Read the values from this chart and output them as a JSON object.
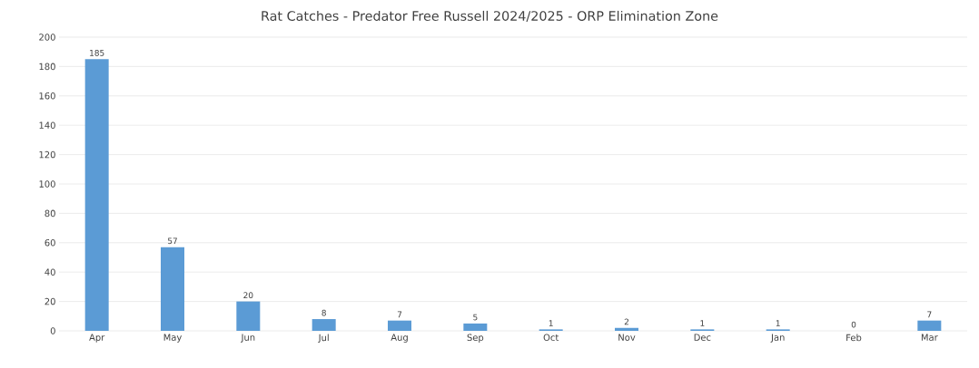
{
  "chart_data": {
    "type": "bar",
    "title": "Rat Catches - Predator Free Russell 2024/2025 - ORP Elimination Zone",
    "categories": [
      "Apr",
      "May",
      "Jun",
      "Jul",
      "Aug",
      "Sep",
      "Oct",
      "Nov",
      "Dec",
      "Jan",
      "Feb",
      "Mar"
    ],
    "values": [
      185,
      57,
      20,
      8,
      7,
      5,
      1,
      2,
      1,
      1,
      0,
      7
    ],
    "color": "#5b9bd5",
    "ylim": [
      0,
      200
    ],
    "yticks": [
      0,
      20,
      40,
      60,
      80,
      100,
      120,
      140,
      160,
      180,
      200
    ],
    "grid": "y",
    "data_labels": true
  }
}
